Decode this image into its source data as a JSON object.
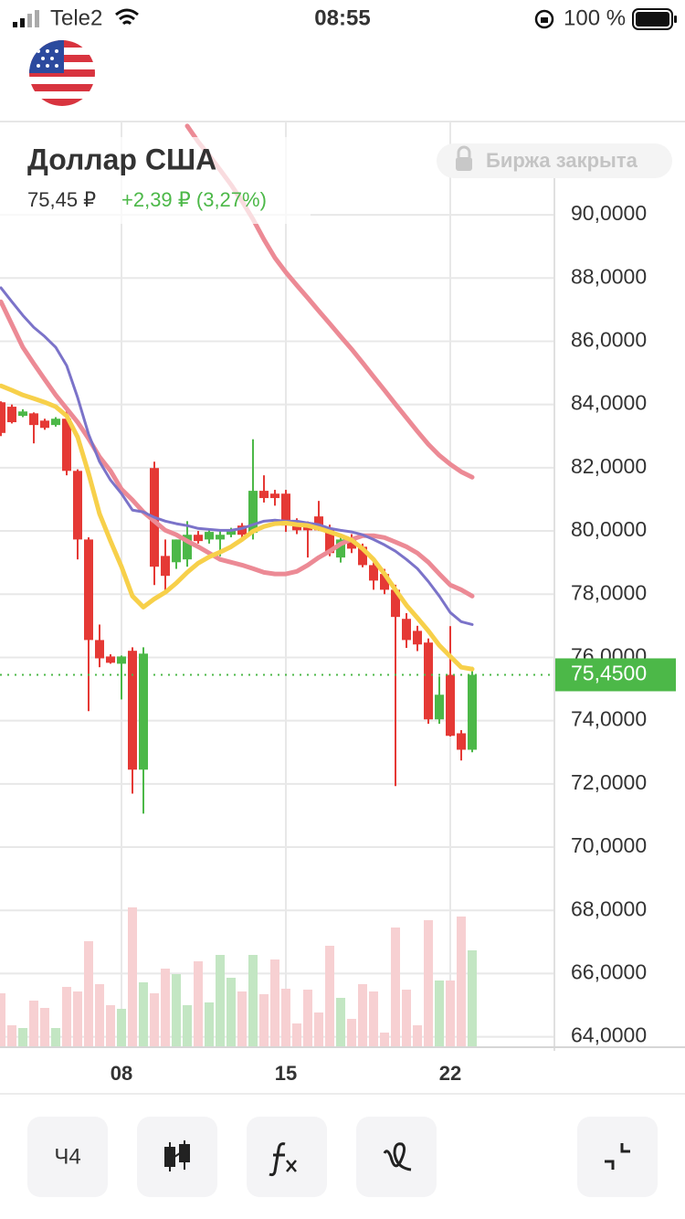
{
  "status_bar": {
    "carrier": "Tele2",
    "time": "08:55",
    "battery": "100 %"
  },
  "header": {
    "title": "Доллар США",
    "price": "75,45 ₽",
    "change": "+2,39 ₽ (3,27%)",
    "market_status": "Биржа закрыта"
  },
  "toolbar": {
    "interval": "Ч4"
  },
  "chart_data": {
    "type": "candlestick",
    "categories": [
      null,
      null,
      null,
      null,
      null,
      null,
      null,
      null,
      null,
      null,
      null,
      "08",
      null,
      null,
      null,
      null,
      null,
      null,
      null,
      null,
      null,
      null,
      null,
      null,
      null,
      null,
      "15",
      null,
      null,
      null,
      null,
      null,
      null,
      null,
      null,
      null,
      null,
      null,
      null,
      null,
      null,
      "22",
      null,
      null
    ],
    "open": [
      84.07,
      83.93,
      83.64,
      83.72,
      83.49,
      83.35,
      83.55,
      81.9,
      79.73,
      76.55,
      76.03,
      75.8,
      76.21,
      72.45,
      81.99,
      79.21,
      79.01,
      79.1,
      79.88,
      79.73,
      79.73,
      79.88,
      80.17,
      79.94,
      81.27,
      81.18,
      81.18,
      80.25,
      80.17,
      80.46,
      80.08,
      79.16,
      79.73,
      79.5,
      78.92,
      78.64,
      78.14,
      77.22,
      76.84,
      76.47,
      74.04,
      75.45,
      73.6,
      73.08
    ],
    "high": [
      84.1,
      84.0,
      83.85,
      83.75,
      83.55,
      83.6,
      83.78,
      81.95,
      79.8,
      77.04,
      76.1,
      76.06,
      76.32,
      76.32,
      82.19,
      79.73,
      79.73,
      80.31,
      80.0,
      80.02,
      80.0,
      80.1,
      80.25,
      82.9,
      81.76,
      81.3,
      81.3,
      80.4,
      80.3,
      80.95,
      80.2,
      79.9,
      79.9,
      79.6,
      79.0,
      78.8,
      78.3,
      77.4,
      77.0,
      76.6,
      75.4,
      76.99,
      73.7,
      75.7
    ],
    "low": [
      83.0,
      83.4,
      83.6,
      82.77,
      83.2,
      83.3,
      81.76,
      79.1,
      74.3,
      75.69,
      75.8,
      74.67,
      71.69,
      71.06,
      78.29,
      78.06,
      78.8,
      78.87,
      79.6,
      79.6,
      79.2,
      79.8,
      79.8,
      79.73,
      80.9,
      80.8,
      79.97,
      79.9,
      79.16,
      80.0,
      79.2,
      79.0,
      79.3,
      78.85,
      78.14,
      78.0,
      71.93,
      76.3,
      76.2,
      73.9,
      73.9,
      73.5,
      72.74,
      73.0
    ],
    "close": [
      83.1,
      83.44,
      83.78,
      83.35,
      83.26,
      83.55,
      81.9,
      79.73,
      76.55,
      75.97,
      75.83,
      76.03,
      72.45,
      76.12,
      78.87,
      78.58,
      79.73,
      79.88,
      79.68,
      79.97,
      79.88,
      80.02,
      79.88,
      81.27,
      81.04,
      81.04,
      80.17,
      80.02,
      80.02,
      80.02,
      79.3,
      79.73,
      79.44,
      78.92,
      78.43,
      78.14,
      77.28,
      76.55,
      76.41,
      74.04,
      74.82,
      73.52,
      73.08,
      75.45
    ],
    "volume": [
      58,
      23,
      20,
      50,
      42,
      20,
      65,
      60,
      115,
      68,
      45,
      41,
      152,
      70,
      58,
      85,
      79,
      45,
      93,
      48,
      100,
      75,
      60,
      100,
      57,
      95,
      63,
      25,
      62,
      37,
      110,
      53,
      30,
      68,
      60,
      15,
      130,
      62,
      23,
      138,
      72,
      72,
      142,
      105
    ],
    "up_color": "#4cb848",
    "down_color": "#e53935",
    "volume_up_color": "#c3e6c3",
    "volume_down_color": "#f7d0d2",
    "overlays": [
      {
        "color": "#ec8a95",
        "values": [
          null,
          null,
          null,
          null,
          null,
          null,
          null,
          null,
          null,
          null,
          null,
          null,
          null,
          null,
          null,
          null,
          null,
          92.81,
          92.31,
          91.88,
          91.42,
          90.95,
          90.43,
          89.86,
          89.22,
          88.64,
          88.18,
          87.77,
          87.37,
          86.96,
          86.56,
          86.15,
          85.75,
          85.32,
          84.88,
          84.45,
          84.01,
          83.58,
          83.15,
          82.74,
          82.39,
          82.11,
          81.87,
          81.7
        ]
      },
      {
        "color": "#ec8a95",
        "values": [
          87.25,
          86.53,
          85.81,
          85.29,
          84.79,
          84.3,
          83.87,
          83.44,
          82.92,
          82.34,
          81.9,
          81.32,
          80.98,
          80.6,
          80.31,
          80.02,
          79.88,
          79.68,
          79.5,
          79.3,
          79.1,
          79.01,
          78.92,
          78.81,
          78.69,
          78.64,
          78.64,
          78.72,
          78.92,
          79.16,
          79.36,
          79.59,
          79.73,
          79.85,
          79.85,
          79.79,
          79.65,
          79.5,
          79.3,
          79.01,
          78.64,
          78.29,
          78.14,
          77.94
        ]
      },
      {
        "color": "#7b73c9",
        "values": [
          87.69,
          87.25,
          86.82,
          86.44,
          86.15,
          85.81,
          85.23,
          84.22,
          83.06,
          82.19,
          81.61,
          81.18,
          80.66,
          80.6,
          80.43,
          80.31,
          80.23,
          80.17,
          80.08,
          80.05,
          80.02,
          80.02,
          80.08,
          80.2,
          80.31,
          80.34,
          80.31,
          80.31,
          80.25,
          80.2,
          80.08,
          80.02,
          79.97,
          79.88,
          79.73,
          79.56,
          79.36,
          79.1,
          78.81,
          78.4,
          77.94,
          77.42,
          77.13,
          77.04
        ]
      },
      {
        "color": "#f7d04a",
        "values": [
          84.59,
          84.45,
          84.3,
          84.19,
          84.07,
          83.93,
          83.64,
          82.97,
          81.82,
          80.54,
          79.68,
          78.87,
          77.94,
          77.59,
          77.85,
          78.06,
          78.35,
          78.69,
          78.98,
          79.18,
          79.33,
          79.5,
          79.73,
          79.99,
          80.14,
          80.23,
          80.25,
          80.2,
          80.17,
          80.08,
          79.97,
          79.85,
          79.71,
          79.44,
          79.1,
          78.64,
          78.14,
          77.65,
          77.25,
          76.84,
          76.38,
          76.03,
          75.69,
          75.63
        ]
      }
    ],
    "price_line": {
      "value": 75.45,
      "label": "75,4500"
    },
    "ylim": [
      63.7,
      92.95
    ],
    "yticks": [
      {
        "value": 90,
        "label": "90,0000"
      },
      {
        "value": 88,
        "label": "88,0000"
      },
      {
        "value": 86,
        "label": "86,0000"
      },
      {
        "value": 84,
        "label": "84,0000"
      },
      {
        "value": 82,
        "label": "82,0000"
      },
      {
        "value": 80,
        "label": "80,0000"
      },
      {
        "value": 78,
        "label": "78,0000"
      },
      {
        "value": 76,
        "label": "76,0000"
      },
      {
        "value": 74,
        "label": "74,0000"
      },
      {
        "value": 72,
        "label": "72,0000"
      },
      {
        "value": 70,
        "label": "70,0000"
      },
      {
        "value": 68,
        "label": "68,0000"
      },
      {
        "value": 66,
        "label": "66,0000"
      },
      {
        "value": 64,
        "label": "64,0000"
      }
    ],
    "grid": true
  }
}
